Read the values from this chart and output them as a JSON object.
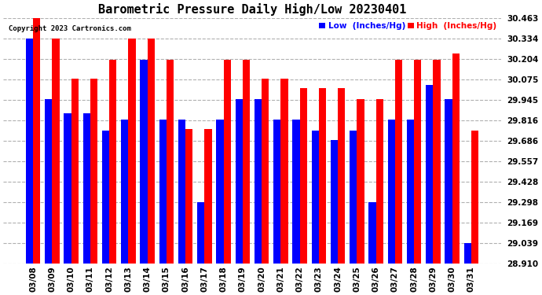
{
  "title": "Barometric Pressure Daily High/Low 20230401",
  "copyright": "Copyright 2023 Cartronics.com",
  "legend_low": "Low  (Inches/Hg)",
  "legend_high": "High  (Inches/Hg)",
  "categories": [
    "03/08",
    "03/09",
    "03/10",
    "03/11",
    "03/12",
    "03/13",
    "03/14",
    "03/15",
    "03/16",
    "03/17",
    "03/18",
    "03/19",
    "03/20",
    "03/21",
    "03/22",
    "03/23",
    "03/24",
    "03/25",
    "03/26",
    "03/27",
    "03/28",
    "03/29",
    "03/30",
    "03/31"
  ],
  "high_values": [
    30.46,
    30.33,
    30.08,
    30.08,
    30.2,
    30.33,
    30.33,
    30.2,
    29.76,
    29.76,
    30.2,
    30.2,
    30.08,
    30.08,
    30.02,
    30.02,
    30.02,
    29.95,
    29.95,
    30.2,
    30.2,
    30.2,
    30.24,
    29.75
  ],
  "low_values": [
    30.33,
    29.95,
    29.86,
    29.86,
    29.75,
    29.82,
    30.2,
    29.82,
    29.82,
    29.3,
    29.82,
    29.95,
    29.95,
    29.82,
    29.82,
    29.75,
    29.69,
    29.75,
    29.3,
    29.82,
    29.82,
    30.04,
    29.95,
    29.04
  ],
  "high_color": "#ff0000",
  "low_color": "#0000ff",
  "bg_color": "#ffffff",
  "grid_color": "#b0b0b0",
  "yticks": [
    28.91,
    29.039,
    29.169,
    29.298,
    29.428,
    29.557,
    29.686,
    29.816,
    29.945,
    30.075,
    30.204,
    30.334,
    30.463
  ],
  "ylim_min": 28.91,
  "ylim_max": 30.463,
  "title_fontsize": 11,
  "tick_fontsize": 7.5,
  "bar_width": 0.38
}
